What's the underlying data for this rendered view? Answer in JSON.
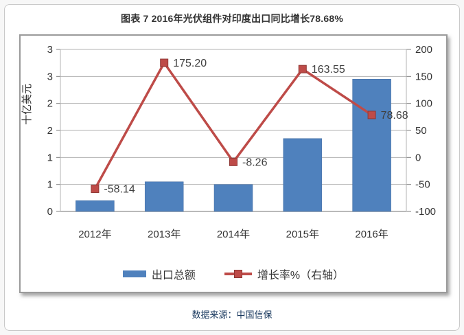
{
  "header": {
    "title": "图表 7  2016年光伏组件对印度出口同比增长78.68%"
  },
  "footer": {
    "source": "数据来源：中国信保"
  },
  "colors": {
    "bar": "#4f81bd",
    "bar_border": "#446da1",
    "line": "#be4b48",
    "marker_border": "#8f3734",
    "grid": "#b3b3b3",
    "axis": "#808080",
    "tick_text": "#333333",
    "data_label_text": "#404040",
    "title_text": "#333333",
    "source_text": "#16365c"
  },
  "chart_data": {
    "type": "combo_bar_line",
    "title": "图表 7  2016年光伏组件对印度出口同比增长78.68%",
    "categories": [
      "2012年",
      "2013年",
      "2014年",
      "2015年",
      "2016年"
    ],
    "series": [
      {
        "name": "出口总额",
        "type": "bar",
        "axis": "left",
        "values": [
          0.2,
          0.55,
          0.5,
          1.35,
          2.45
        ]
      },
      {
        "name": "增长率%（右轴）",
        "type": "line",
        "axis": "right",
        "values": [
          -58.14,
          175.2,
          -8.26,
          163.55,
          78.68
        ],
        "data_labels": [
          "-58.14",
          "175.20",
          "-8.26",
          "163.55",
          "78.68"
        ]
      }
    ],
    "left_axis": {
      "title": "十亿美元",
      "min": 0,
      "max": 3,
      "step": 0.5,
      "tick_labels": [
        "3",
        "3",
        "2",
        "2",
        "1",
        "1",
        "0"
      ]
    },
    "right_axis": {
      "min": -100,
      "max": 200,
      "step": 50,
      "tick_labels": [
        "200",
        "150",
        "100",
        "50",
        "0",
        "-50",
        "-100"
      ]
    },
    "grid": true,
    "legend_position": "bottom"
  }
}
